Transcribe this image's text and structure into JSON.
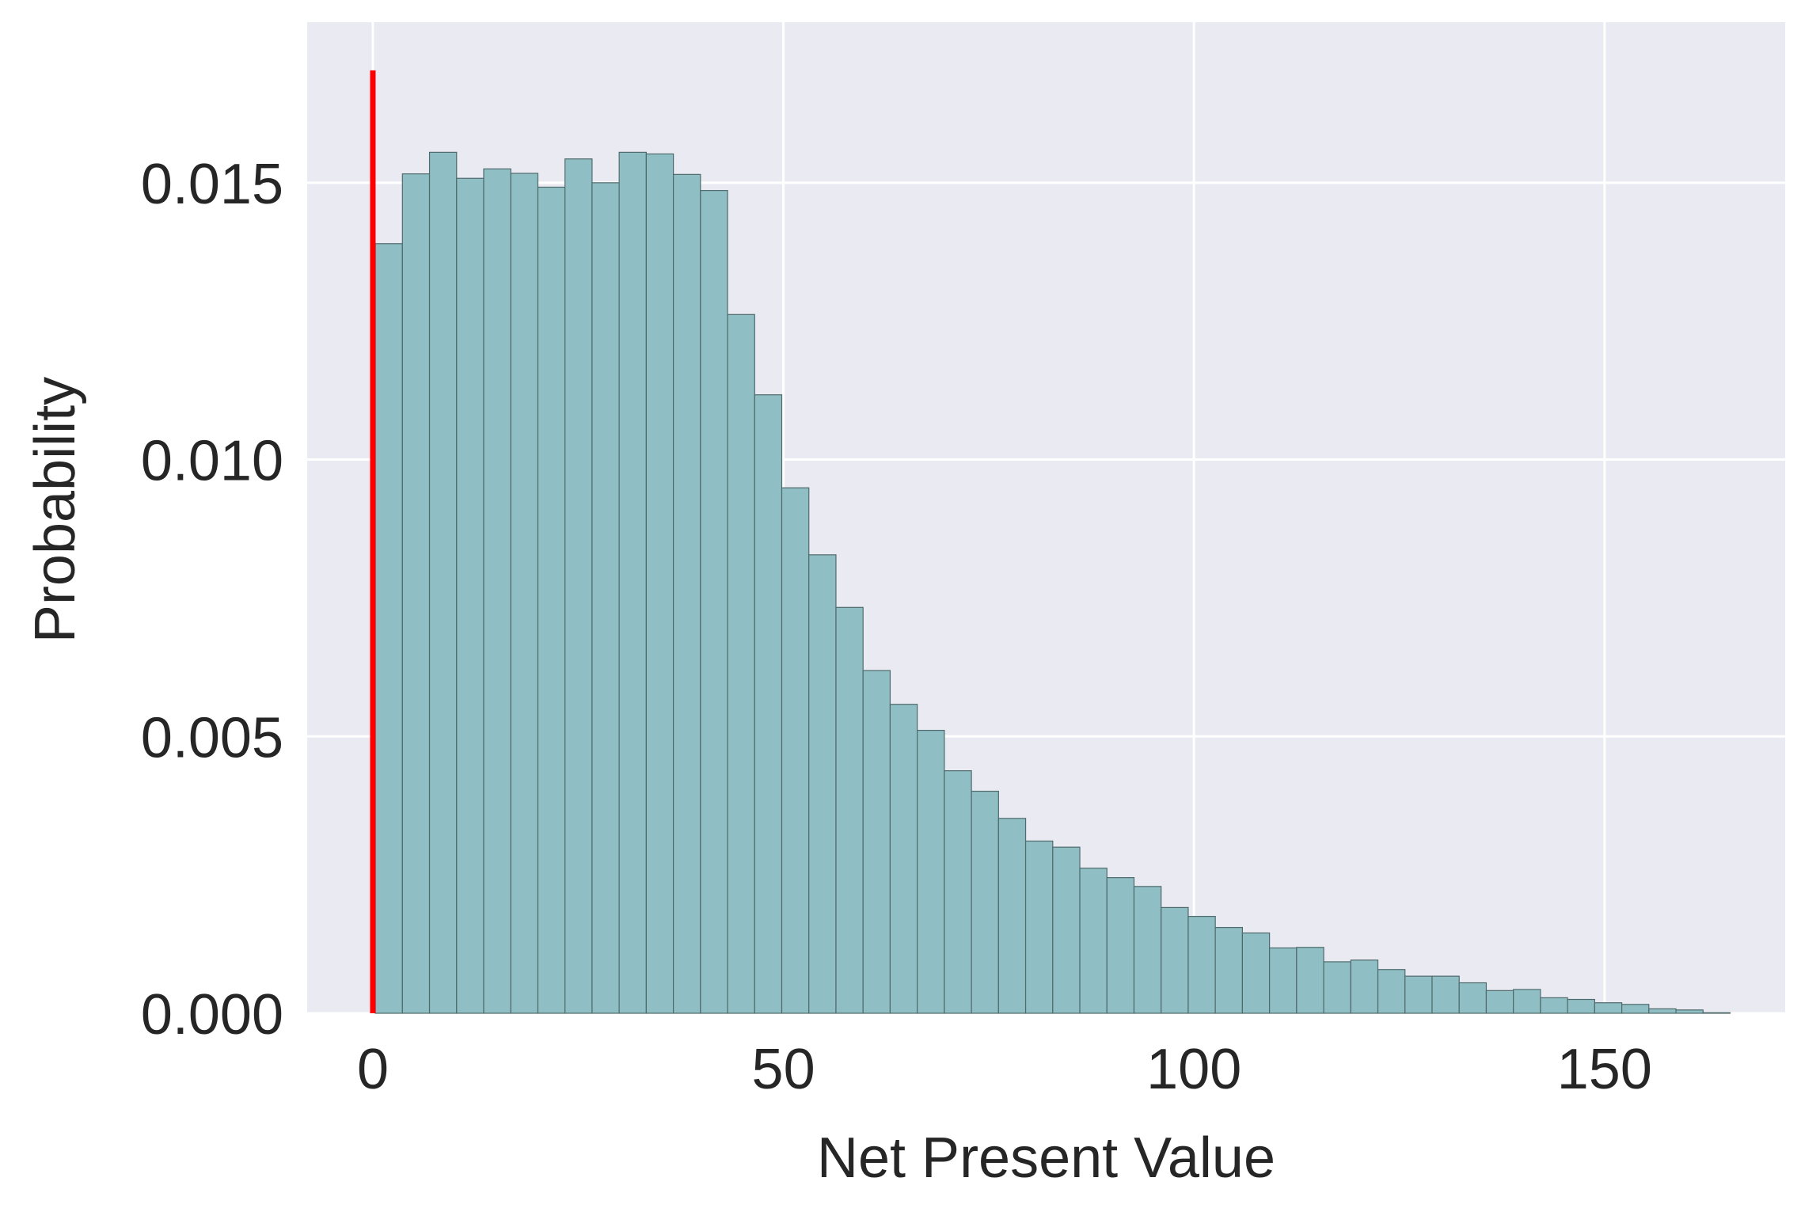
{
  "chart_data": {
    "type": "bar",
    "subtype": "histogram",
    "title": "",
    "xlabel": "Net Present Value",
    "ylabel": "Probability",
    "xlim": [
      -8,
      172
    ],
    "ylim": [
      0,
      0.0179
    ],
    "xticks": [
      0,
      50,
      100,
      150
    ],
    "xtick_labels": [
      "0",
      "50",
      "100",
      "150"
    ],
    "yticks": [
      0.0,
      0.005,
      0.01,
      0.015
    ],
    "ytick_labels": [
      "0.000",
      "0.005",
      "0.010",
      "0.015"
    ],
    "grid": true,
    "legend": "none",
    "bin_start": 0.3,
    "bin_width": 3.3,
    "values": [
      0.0139,
      0.01516,
      0.01555,
      0.01508,
      0.01525,
      0.01517,
      0.01492,
      0.01543,
      0.015,
      0.01555,
      0.01552,
      0.01515,
      0.01486,
      0.01262,
      0.01117,
      0.00949,
      0.00828,
      0.00733,
      0.00619,
      0.00558,
      0.00511,
      0.00438,
      0.00401,
      0.00352,
      0.00311,
      0.003,
      0.00262,
      0.00245,
      0.00229,
      0.00191,
      0.00175,
      0.00155,
      0.00145,
      0.00118,
      0.00119,
      0.00093,
      0.00096,
      0.00079,
      0.00067,
      0.00067,
      0.00055,
      0.00041,
      0.00043,
      0.00028,
      0.00025,
      0.00019,
      0.00016,
      8e-05,
      6e-05,
      1e-05
    ],
    "reference_line": {
      "x": 0,
      "y_top": 0.01703,
      "color": "#ff0000"
    },
    "colors": {
      "bar_fill": "#8fbfc4",
      "bar_edge": "#4f6a6c",
      "plot_background": "#eaeaf2",
      "grid": "#ffffff",
      "text": "#262626"
    }
  }
}
